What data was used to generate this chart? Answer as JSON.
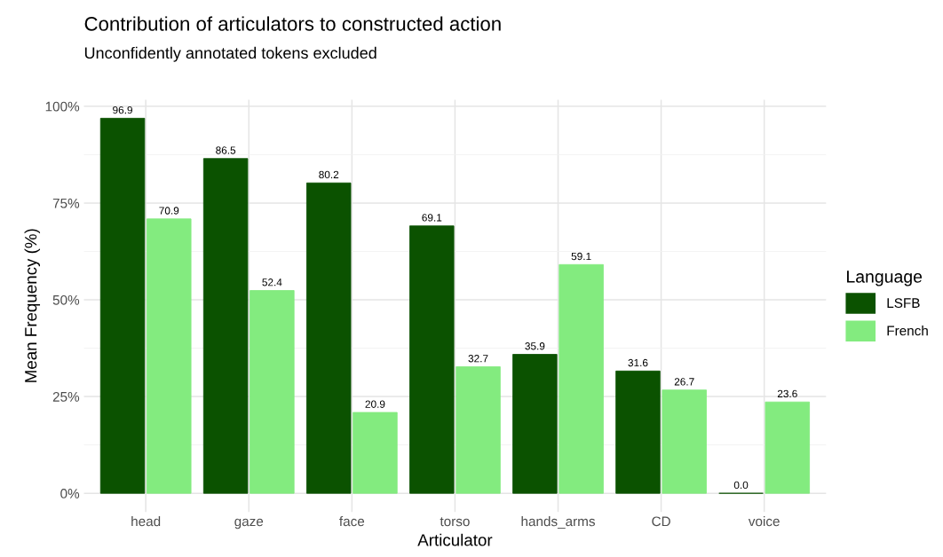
{
  "chart_data": {
    "type": "bar",
    "title": "Contribution of articulators to constructed action",
    "subtitle": "Unconfidently annotated tokens excluded",
    "xlabel": "Articulator",
    "ylabel": "Mean Frequency (%)",
    "legend_title": "Language",
    "categories": [
      "head",
      "gaze",
      "face",
      "torso",
      "hands_arms",
      "CD",
      "voice"
    ],
    "series": [
      {
        "name": "LSFB",
        "color": "#0b5200",
        "values": [
          96.9,
          86.5,
          80.2,
          69.1,
          35.9,
          31.6,
          0.0
        ],
        "value_labels": [
          "96.9",
          "86.5",
          "80.2",
          "69.1",
          "35.9",
          "31.6",
          "0.0"
        ]
      },
      {
        "name": "French",
        "color": "#83eb7f",
        "values": [
          70.9,
          52.4,
          20.9,
          32.7,
          59.1,
          26.7,
          23.6
        ],
        "value_labels": [
          "70.9",
          "52.4",
          "20.9",
          "32.7",
          "59.1",
          "26.7",
          "23.6"
        ]
      }
    ],
    "ylim": [
      -4.8,
      101.7
    ],
    "yticks": [
      {
        "value": 0,
        "label": "0%"
      },
      {
        "value": 25,
        "label": "25%"
      },
      {
        "value": 50,
        "label": "50%"
      },
      {
        "value": 75,
        "label": "75%"
      },
      {
        "value": 100,
        "label": "100%"
      }
    ],
    "grid": true,
    "legend": "right"
  }
}
